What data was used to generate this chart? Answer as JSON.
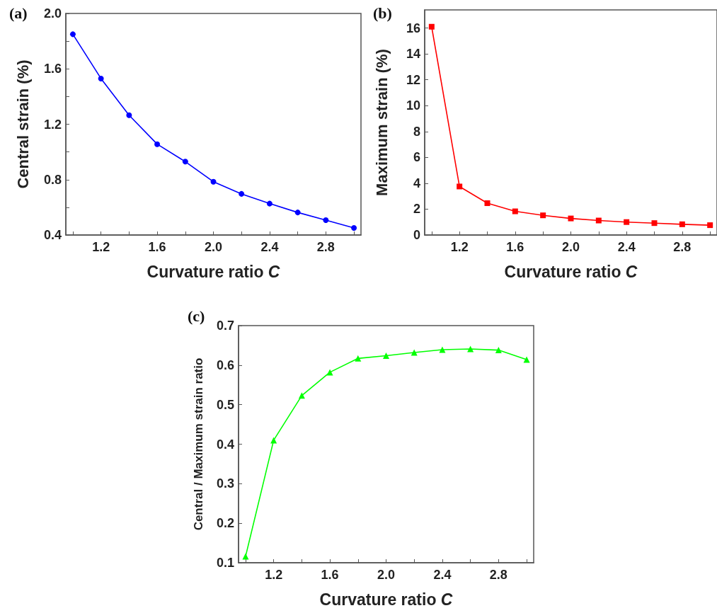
{
  "chart_data": [
    {
      "type": "line",
      "title": "(a)",
      "xlabel": "Curvature ratio C",
      "ylabel": "Central strain (%)",
      "x": [
        1.0,
        1.2,
        1.4,
        1.6,
        1.8,
        2.0,
        2.2,
        2.4,
        2.6,
        2.8,
        3.0
      ],
      "series": [
        {
          "color": "#0000ff",
          "values": [
            1.85,
            1.53,
            1.265,
            1.056,
            0.93,
            0.785,
            0.697,
            0.627,
            0.563,
            0.507,
            0.451
          ]
        }
      ],
      "xlim": [
        0.95,
        3.05
      ],
      "xticks": [
        {
          "value": 1.0,
          "label": null
        },
        1.2,
        {
          "value": 1.4,
          "label": null
        },
        1.6,
        {
          "value": 1.8,
          "label": null
        },
        {
          "value": 2.0,
          "label": "2.0"
        },
        {
          "value": 2.2,
          "label": null
        },
        2.4,
        {
          "value": 2.6,
          "label": null
        },
        2.8,
        {
          "value": 3.0,
          "label": null
        }
      ],
      "ylim": [
        0.4,
        2.0
      ],
      "yticks": [
        0.4,
        {
          "value": 0.6,
          "label": null
        },
        0.8,
        {
          "value": 1.0,
          "label": null
        },
        1.2,
        {
          "value": 1.4,
          "label": null
        },
        1.6,
        {
          "value": 1.8,
          "label": null
        },
        {
          "value": 2.0,
          "label": "2.0"
        }
      ],
      "marker": "circle",
      "grid": false
    },
    {
      "type": "line",
      "title": "(b)",
      "xlabel": "Curvature ratio C",
      "ylabel": "Maximum strain (%)",
      "x": [
        1.0,
        1.2,
        1.4,
        1.6,
        1.8,
        2.0,
        2.2,
        2.4,
        2.6,
        2.8,
        3.0
      ],
      "series": [
        {
          "color": "#ff0000",
          "values": [
            16.1,
            3.75,
            2.46,
            1.83,
            1.52,
            1.28,
            1.12,
            1.0,
            0.92,
            0.83,
            0.76
          ]
        }
      ],
      "xlim": [
        0.95,
        3.05
      ],
      "xticks": [
        {
          "value": 1.0,
          "label": null
        },
        1.2,
        {
          "value": 1.4,
          "label": null
        },
        1.6,
        {
          "value": 1.8,
          "label": null
        },
        {
          "value": 2.0,
          "label": "2.0"
        },
        {
          "value": 2.2,
          "label": null
        },
        2.4,
        {
          "value": 2.6,
          "label": null
        },
        2.8,
        {
          "value": 3.0,
          "label": null
        }
      ],
      "ylim": [
        0,
        17.4
      ],
      "yticks": [
        0,
        2,
        4,
        6,
        8,
        10,
        12,
        14,
        16
      ],
      "marker": "square",
      "grid": false
    },
    {
      "type": "line",
      "title": "(c)",
      "xlabel": "Curvature ratio C",
      "ylabel": "Central / Maximum strain ratio",
      "x": [
        1.0,
        1.2,
        1.4,
        1.6,
        1.8,
        2.0,
        2.2,
        2.4,
        2.6,
        2.8,
        3.0
      ],
      "series": [
        {
          "color": "#00ff00",
          "values": [
            0.116,
            0.41,
            0.523,
            0.582,
            0.617,
            0.624,
            0.632,
            0.639,
            0.641,
            0.638,
            0.614
          ]
        }
      ],
      "xlim": [
        0.95,
        3.05
      ],
      "xticks": [
        {
          "value": 1.0,
          "label": null
        },
        1.2,
        {
          "value": 1.4,
          "label": null
        },
        1.6,
        {
          "value": 1.8,
          "label": null
        },
        {
          "value": 2.0,
          "label": "2.0"
        },
        {
          "value": 2.2,
          "label": null
        },
        2.4,
        {
          "value": 2.6,
          "label": null
        },
        2.8,
        {
          "value": 3.0,
          "label": null
        }
      ],
      "ylim": [
        0.1,
        0.7
      ],
      "yticks": [
        0.1,
        0.2,
        0.3,
        0.4,
        0.5,
        0.6,
        0.7
      ],
      "marker": "triangle",
      "grid": false
    }
  ]
}
